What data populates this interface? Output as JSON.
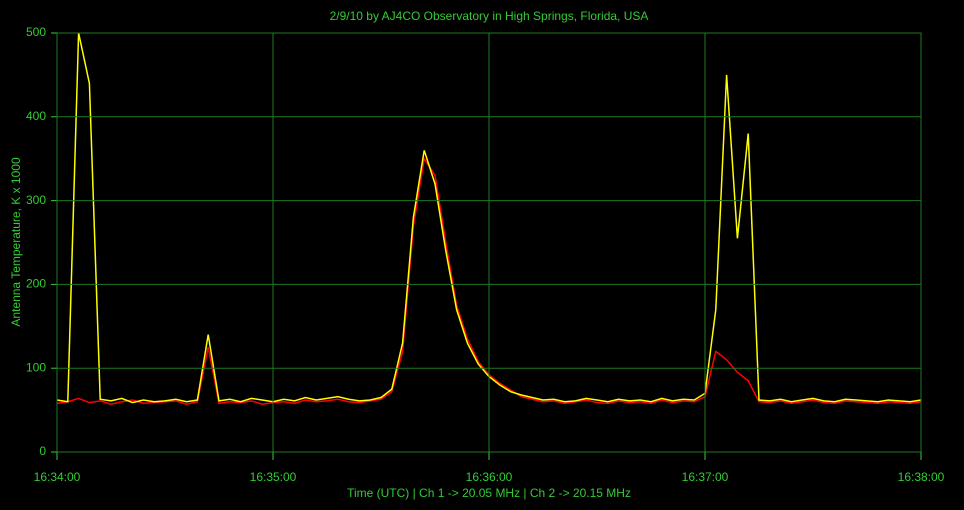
{
  "chart_data": {
    "type": "line",
    "title": "2/9/10  by  AJ4CO Observatory  in  High Springs, Florida, USA",
    "x_label": "Time (UTC)  |  Ch 1 -> 20.05 MHz  |  Ch 2 -> 20.15 MHz",
    "y_label": "Antenna Temperature, K x 1000",
    "x": [
      "16:34:00",
      "16:34:03",
      "16:34:06",
      "16:34:09",
      "16:34:12",
      "16:34:15",
      "16:34:18",
      "16:34:21",
      "16:34:24",
      "16:34:27",
      "16:34:30",
      "16:34:33",
      "16:34:36",
      "16:34:39",
      "16:34:42",
      "16:34:45",
      "16:34:48",
      "16:34:51",
      "16:34:54",
      "16:34:57",
      "16:35:00",
      "16:35:03",
      "16:35:06",
      "16:35:09",
      "16:35:12",
      "16:35:15",
      "16:35:18",
      "16:35:21",
      "16:35:24",
      "16:35:27",
      "16:35:30",
      "16:35:33",
      "16:35:36",
      "16:35:39",
      "16:35:42",
      "16:35:45",
      "16:35:48",
      "16:35:51",
      "16:35:54",
      "16:35:57",
      "16:36:00",
      "16:36:03",
      "16:36:06",
      "16:36:09",
      "16:36:12",
      "16:36:15",
      "16:36:18",
      "16:36:21",
      "16:36:24",
      "16:36:27",
      "16:36:30",
      "16:36:33",
      "16:36:36",
      "16:36:39",
      "16:36:42",
      "16:36:45",
      "16:36:48",
      "16:36:51",
      "16:36:54",
      "16:36:57",
      "16:37:00",
      "16:37:03",
      "16:37:06",
      "16:37:09",
      "16:37:12",
      "16:37:15",
      "16:37:18",
      "16:37:21",
      "16:37:24",
      "16:37:27",
      "16:37:30",
      "16:37:33",
      "16:37:36",
      "16:37:39",
      "16:37:42",
      "16:37:45",
      "16:37:48",
      "16:37:51",
      "16:37:54",
      "16:37:57",
      "16:38:00"
    ],
    "series": [
      {
        "color": "#ff0000",
        "values": [
          58,
          60,
          64,
          59,
          61,
          57,
          60,
          62,
          58,
          59,
          60,
          61,
          57,
          60,
          125,
          58,
          60,
          59,
          61,
          57,
          59,
          60,
          58,
          62,
          60,
          61,
          63,
          60,
          59,
          61,
          63,
          72,
          120,
          270,
          350,
          330,
          250,
          175,
          135,
          108,
          92,
          82,
          74,
          66,
          63,
          60,
          61,
          58,
          60,
          62,
          59,
          58,
          61,
          59,
          60,
          58,
          62,
          59,
          61,
          60,
          66,
          120,
          110,
          95,
          85,
          60,
          59,
          61,
          58,
          60,
          62,
          59,
          58,
          61,
          60,
          59,
          58,
          60,
          59,
          58,
          60
        ]
      },
      {
        "color": "#ffff00",
        "values": [
          62,
          60,
          500,
          440,
          63,
          61,
          64,
          59,
          62,
          60,
          61,
          63,
          60,
          62,
          140,
          61,
          63,
          60,
          64,
          62,
          60,
          63,
          61,
          65,
          62,
          64,
          66,
          63,
          61,
          62,
          65,
          75,
          130,
          280,
          360,
          320,
          240,
          170,
          130,
          105,
          90,
          80,
          72,
          68,
          65,
          62,
          63,
          60,
          61,
          64,
          62,
          60,
          63,
          61,
          62,
          60,
          64,
          61,
          63,
          62,
          70,
          170,
          450,
          255,
          380,
          62,
          61,
          63,
          60,
          62,
          64,
          61,
          60,
          63,
          62,
          61,
          60,
          62,
          61,
          60,
          62
        ]
      }
    ],
    "xlim": [
      "16:34:00",
      "16:38:00"
    ],
    "xticks": [
      "16:34:00",
      "16:35:00",
      "16:36:00",
      "16:37:00",
      "16:38:00"
    ],
    "ylim": [
      0,
      500
    ],
    "yticks": [
      0,
      100,
      200,
      300,
      400,
      500
    ],
    "grid": true
  }
}
